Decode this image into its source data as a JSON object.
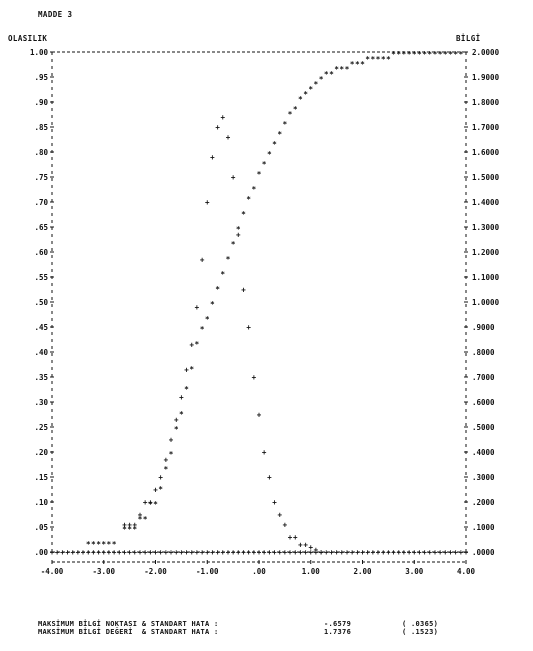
{
  "page_title": "MADDE 3",
  "chart_data": {
    "type": "scatter",
    "title": "MADDE 3",
    "ylabel": "OLASILIK",
    "y2label": "BİLGİ",
    "xlim": [
      -4,
      4
    ],
    "ylim": [
      0,
      1
    ],
    "y2lim": [
      0,
      2
    ],
    "xticks": [
      "-4.00",
      "-3.00",
      "-2.00",
      "-1.00",
      ".00",
      "1.00",
      "2.00",
      "3.00",
      "4.00"
    ],
    "yticks": [
      ".00",
      ".05",
      ".10",
      ".15",
      ".20",
      ".25",
      ".30",
      ".35",
      ".40",
      ".45",
      ".50",
      ".55",
      ".60",
      ".65",
      ".70",
      ".75",
      ".80",
      ".85",
      ".90",
      ".95",
      "1.00"
    ],
    "y2ticks": [
      ".0000",
      ".1000",
      ".2000",
      ".3000",
      ".4000",
      ".5000",
      ".6000",
      ".7000",
      ".8000",
      ".9000",
      "1.0000",
      "1.1000",
      "1.2000",
      "1.3000",
      "1.4000",
      "1.5000",
      "1.6000",
      "1.7000",
      "1.8000",
      "1.9000",
      "2.0000"
    ],
    "series": [
      {
        "marker": "+",
        "axis": "left",
        "color": "#111111",
        "x": [
          -4.0,
          -3.9,
          -3.8,
          -3.7,
          -3.6,
          -3.5,
          -3.4,
          -3.3,
          -3.2,
          -3.1,
          -3.0,
          -2.9,
          -2.8,
          -2.7,
          -2.6,
          -2.5,
          -2.4,
          -2.3,
          -2.2,
          -2.1,
          -2.0,
          -1.9,
          -1.8,
          -1.7,
          -1.6,
          -1.5,
          -1.4,
          -1.3,
          -1.2,
          -1.1,
          -1.0,
          -0.9,
          -0.8,
          -0.7,
          -0.6,
          -0.5,
          -0.4,
          -0.3,
          -0.2,
          -0.1,
          0.0,
          0.1,
          0.2,
          0.3,
          0.4,
          0.5,
          0.6,
          0.7,
          0.8,
          0.9,
          1.0,
          1.1,
          1.2,
          1.3,
          1.4,
          1.5,
          1.6,
          1.7,
          1.8,
          1.9,
          2.0,
          2.1,
          2.2,
          2.3,
          2.4,
          2.5,
          2.6,
          2.7,
          2.8,
          2.9,
          3.0,
          3.1,
          3.2,
          3.3,
          3.4,
          3.5,
          3.6,
          3.7,
          3.8,
          3.9,
          4.0
        ],
        "y": [
          0.0,
          0.0,
          0.0,
          0.0,
          0.0,
          0.0,
          0.0,
          0.0,
          0.0,
          0.0,
          0.0,
          0.0,
          0.0,
          0.0,
          0.0,
          0.0,
          0.0,
          0.0,
          0.0,
          0.0,
          0.0,
          0.0,
          0.0,
          0.0,
          0.0,
          0.0,
          0.0,
          0.0,
          0.0,
          0.0,
          0.0,
          0.0,
          0.0,
          0.0,
          0.0,
          0.0,
          0.0,
          0.0,
          0.0,
          0.0,
          0.0,
          0.0,
          0.0,
          0.0,
          0.0,
          0.0,
          0.0,
          0.0,
          0.0,
          0.0,
          0.0,
          0.0,
          0.0,
          0.0,
          0.0,
          0.0,
          0.0,
          0.0,
          0.0,
          0.0,
          0.0,
          0.0,
          0.0,
          0.0,
          0.0,
          0.0,
          0.0,
          0.0,
          0.0,
          0.0,
          0.0,
          0.0,
          0.0,
          0.0,
          0.0,
          0.0,
          0.0,
          0.0,
          0.0,
          0.0,
          0.0
        ]
      },
      {
        "marker": "*",
        "axis": "left",
        "color": "#111111",
        "x": [
          -3.3,
          -3.2,
          -3.1,
          -3.0,
          -2.9,
          -2.8,
          -2.6,
          -2.5,
          -2.4,
          -2.3,
          -2.2,
          -2.1,
          -2.0,
          -1.9,
          -1.8,
          -1.7,
          -1.6,
          -1.5,
          -1.4,
          -1.3,
          -1.2,
          -1.1,
          -1.0,
          -0.9,
          -0.8,
          -0.7,
          -0.6,
          -0.5,
          -0.4,
          -0.3,
          -0.2,
          -0.1,
          0.0,
          0.1,
          0.2,
          0.3,
          0.4,
          0.5,
          0.6,
          0.7,
          0.8,
          0.9,
          1.0,
          1.1,
          1.2,
          1.3,
          1.4,
          1.5,
          1.6,
          1.7,
          1.8,
          1.9,
          2.0,
          2.1,
          2.2,
          2.3,
          2.4,
          2.5,
          2.6,
          2.7,
          2.8,
          2.9,
          3.0,
          3.1,
          3.2,
          3.3,
          3.4,
          3.5,
          3.6,
          3.7,
          3.8,
          3.9
        ],
        "y": [
          0.02,
          0.02,
          0.02,
          0.02,
          0.02,
          0.02,
          0.05,
          0.05,
          0.05,
          0.07,
          0.07,
          0.1,
          0.1,
          0.13,
          0.17,
          0.2,
          0.25,
          0.28,
          0.33,
          0.37,
          0.42,
          0.45,
          0.47,
          0.5,
          0.53,
          0.56,
          0.59,
          0.62,
          0.65,
          0.68,
          0.71,
          0.73,
          0.76,
          0.78,
          0.8,
          0.82,
          0.84,
          0.86,
          0.88,
          0.89,
          0.91,
          0.92,
          0.93,
          0.94,
          0.95,
          0.96,
          0.96,
          0.97,
          0.97,
          0.97,
          0.98,
          0.98,
          0.98,
          0.99,
          0.99,
          0.99,
          0.99,
          0.99,
          1.0,
          1.0,
          1.0,
          1.0,
          1.0,
          1.0,
          1.0,
          1.0,
          1.0,
          1.0,
          1.0,
          1.0,
          1.0,
          1.0
        ]
      },
      {
        "marker": "+",
        "axis": "right",
        "color": "#111111",
        "x": [
          -2.6,
          -2.5,
          -2.4,
          -2.3,
          -2.2,
          -2.1,
          -2.0,
          -1.9,
          -1.8,
          -1.7,
          -1.6,
          -1.5,
          -1.4,
          -1.3,
          -1.2,
          -1.1,
          -1.0,
          -0.9,
          -0.8,
          -0.7,
          -0.6,
          -0.5,
          -0.4,
          -0.3,
          -0.2,
          -0.1,
          0.0,
          0.1,
          0.2,
          0.3,
          0.4,
          0.5,
          0.6,
          0.7,
          0.8,
          0.9,
          1.0,
          1.1,
          1.2
        ],
        "y": [
          0.11,
          0.11,
          0.11,
          0.15,
          0.2,
          0.2,
          0.25,
          0.3,
          0.37,
          0.45,
          0.53,
          0.62,
          0.73,
          0.83,
          0.98,
          1.17,
          1.4,
          1.58,
          1.7,
          1.74,
          1.66,
          1.5,
          1.27,
          1.05,
          0.9,
          0.7,
          0.55,
          0.4,
          0.3,
          0.2,
          0.15,
          0.11,
          0.06,
          0.06,
          0.03,
          0.03,
          0.02,
          0.01,
          0.0
        ]
      }
    ]
  },
  "footer": {
    "row1": {
      "label": "MAKSİMUM BİLGİ NOKTASI & STANDART HATA :",
      "value": "-.6579",
      "se": "( .0365)"
    },
    "row2": {
      "label": "MAKSİMUM BİLGİ DEĞERİ  & STANDART HATA :",
      "value": "1.7376",
      "se": "( .1523)"
    }
  }
}
